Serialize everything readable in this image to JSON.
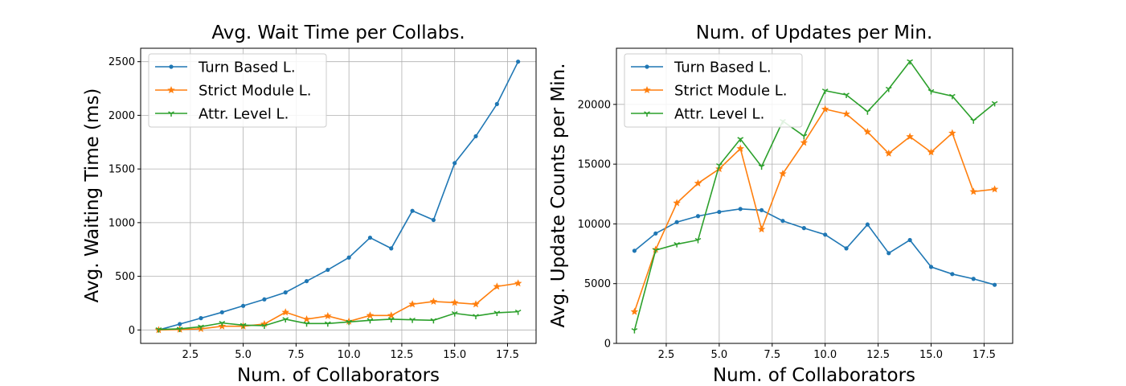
{
  "chart_data": [
    {
      "type": "line",
      "title": "Avg. Wait Time per Collabs.",
      "xlabel": "Num. of Collaborators",
      "ylabel": "Avg. Waiting Time (ms)",
      "xlim": [
        0.15,
        18.85
      ],
      "ylim": [
        -125,
        2625
      ],
      "xticks": [
        2.5,
        5.0,
        7.5,
        10.0,
        12.5,
        15.0,
        17.5
      ],
      "xtick_labels": [
        "2.5",
        "5.0",
        "7.5",
        "10.0",
        "12.5",
        "15.0",
        "17.5"
      ],
      "yticks": [
        0,
        500,
        1000,
        1500,
        2000,
        2500
      ],
      "ytick_labels": [
        "0",
        "500",
        "1000",
        "1500",
        "2000",
        "2500"
      ],
      "grid": true,
      "legend_position": "upper-left",
      "x": [
        1,
        2,
        3,
        4,
        5,
        6,
        7,
        8,
        9,
        10,
        11,
        12,
        13,
        14,
        15,
        16,
        17,
        18
      ],
      "series": [
        {
          "name": "Turn Based L.",
          "marker": "dot",
          "color": "#1f77b4",
          "values": [
            0,
            55,
            110,
            165,
            225,
            285,
            350,
            455,
            560,
            675,
            860,
            760,
            1110,
            1025,
            1555,
            1805,
            2105,
            2500
          ]
        },
        {
          "name": "Strict Module L.",
          "marker": "star",
          "color": "#ff7f0e",
          "values": [
            0,
            5,
            10,
            35,
            35,
            55,
            165,
            100,
            130,
            80,
            135,
            135,
            240,
            265,
            255,
            240,
            405,
            435
          ]
        },
        {
          "name": "Attr. Level L.",
          "marker": "tri",
          "color": "#2ca02c",
          "values": [
            5,
            10,
            30,
            65,
            45,
            40,
            100,
            60,
            60,
            75,
            90,
            100,
            95,
            90,
            155,
            130,
            160,
            170
          ]
        }
      ]
    },
    {
      "type": "line",
      "title": "Num. of Updates per Min.",
      "xlabel": "Num. of Collaborators",
      "ylabel": "Avg. Update Counts per Min.",
      "xlim": [
        0.15,
        18.85
      ],
      "ylim": [
        0,
        24700
      ],
      "xticks": [
        2.5,
        5.0,
        7.5,
        10.0,
        12.5,
        15.0,
        17.5
      ],
      "xtick_labels": [
        "2.5",
        "5.0",
        "7.5",
        "10.0",
        "12.5",
        "15.0",
        "17.5"
      ],
      "yticks": [
        0,
        5000,
        10000,
        15000,
        20000
      ],
      "ytick_labels": [
        "0",
        "5000",
        "10000",
        "15000",
        "20000"
      ],
      "grid": true,
      "legend_position": "upper-left",
      "x": [
        1,
        2,
        3,
        4,
        5,
        6,
        7,
        8,
        9,
        10,
        11,
        12,
        13,
        14,
        15,
        16,
        17,
        18
      ],
      "series": [
        {
          "name": "Turn Based L.",
          "marker": "dot",
          "color": "#1f77b4",
          "values": [
            7750,
            9200,
            10150,
            10650,
            11000,
            11250,
            11150,
            10250,
            9650,
            9100,
            7950,
            9950,
            7550,
            8650,
            6400,
            5800,
            5400,
            4900
          ]
        },
        {
          "name": "Strict Module L.",
          "marker": "star",
          "color": "#ff7f0e",
          "values": [
            2650,
            7850,
            11750,
            13400,
            14600,
            16300,
            9550,
            14200,
            16800,
            19600,
            19200,
            17700,
            15900,
            17300,
            16000,
            17600,
            12700,
            12900
          ]
        },
        {
          "name": "Attr. Level L.",
          "marker": "tri",
          "color": "#2ca02c",
          "values": [
            1100,
            7800,
            8300,
            8650,
            14900,
            17100,
            14800,
            18600,
            17350,
            21150,
            20800,
            19400,
            21300,
            23600,
            21100,
            20700,
            18650,
            20100
          ]
        }
      ]
    }
  ]
}
